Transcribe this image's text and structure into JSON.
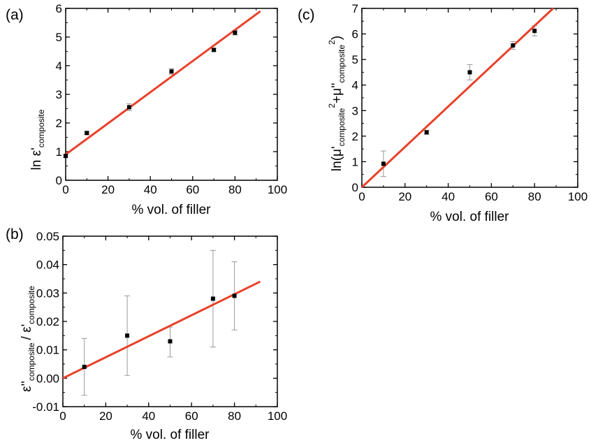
{
  "chart_data": [
    {
      "id": "a",
      "type": "scatter",
      "panel_label": "(a)",
      "xlabel": "% vol. of filler",
      "ylabel": {
        "main": "ln ε'",
        "sub": "composite"
      },
      "xlim": [
        0,
        100
      ],
      "ylim": [
        0,
        6
      ],
      "xticks": [
        "0",
        "20",
        "40",
        "60",
        "80",
        "100"
      ],
      "yticks": [
        "0",
        "1",
        "2",
        "3",
        "4",
        "5",
        "6"
      ],
      "series": [
        {
          "x": [
            0,
            10,
            30,
            50,
            70,
            80
          ],
          "y": [
            0.85,
            1.65,
            2.55,
            3.8,
            4.55,
            5.15
          ],
          "err": [
            0.05,
            0.05,
            0.12,
            0.1,
            0.05,
            0.08
          ]
        }
      ],
      "fit": {
        "x": [
          0,
          92
        ],
        "y": [
          0.9,
          5.9
        ],
        "color": "#e8412a"
      }
    },
    {
      "id": "b",
      "type": "scatter",
      "panel_label": "(b)",
      "xlabel": "% vol. of filler",
      "ylabel": {
        "part1": "ε''",
        "sub1": "composite",
        "part2": "/ ε'",
        "sub2": "composite"
      },
      "xlim": [
        0,
        100
      ],
      "ylim": [
        -0.01,
        0.05
      ],
      "xticks": [
        "0",
        "20",
        "40",
        "60",
        "80",
        "100"
      ],
      "yticks": [
        "-0.01",
        "0.00",
        "0.01",
        "0.02",
        "0.03",
        "0.04",
        "0.05"
      ],
      "series": [
        {
          "x": [
            10,
            30,
            50,
            70,
            80
          ],
          "y": [
            0.004,
            0.015,
            0.013,
            0.028,
            0.029
          ],
          "err_low": [
            0.01,
            0.014,
            0.0055,
            0.017,
            0.012
          ],
          "err_high": [
            0.01,
            0.014,
            0.005,
            0.017,
            0.012
          ]
        }
      ],
      "fit": {
        "x": [
          0,
          92
        ],
        "y": [
          0.0,
          0.034
        ],
        "color": "#e8412a"
      }
    },
    {
      "id": "c",
      "type": "scatter",
      "panel_label": "(c)",
      "xlabel": "% vol. of filler",
      "ylabel": {
        "a": "ln(μ'",
        "b": "composite",
        "c": "2",
        "d": "+μ''",
        "e": "composite",
        "f": "2",
        "g": ")"
      },
      "xlim": [
        0,
        100
      ],
      "ylim": [
        0,
        7
      ],
      "xticks": [
        "0",
        "20",
        "40",
        "60",
        "80",
        "100"
      ],
      "yticks": [
        "0",
        "1",
        "2",
        "3",
        "4",
        "5",
        "6",
        "7"
      ],
      "series": [
        {
          "x": [
            10,
            30,
            50,
            70,
            80
          ],
          "y": [
            0.92,
            2.15,
            4.5,
            5.55,
            6.12
          ],
          "err": [
            0.5,
            0.08,
            0.3,
            0.15,
            0.2
          ]
        }
      ],
      "fit": {
        "x": [
          0,
          88.6
        ],
        "y": [
          0,
          7
        ],
        "color": "#e8412a"
      }
    }
  ]
}
